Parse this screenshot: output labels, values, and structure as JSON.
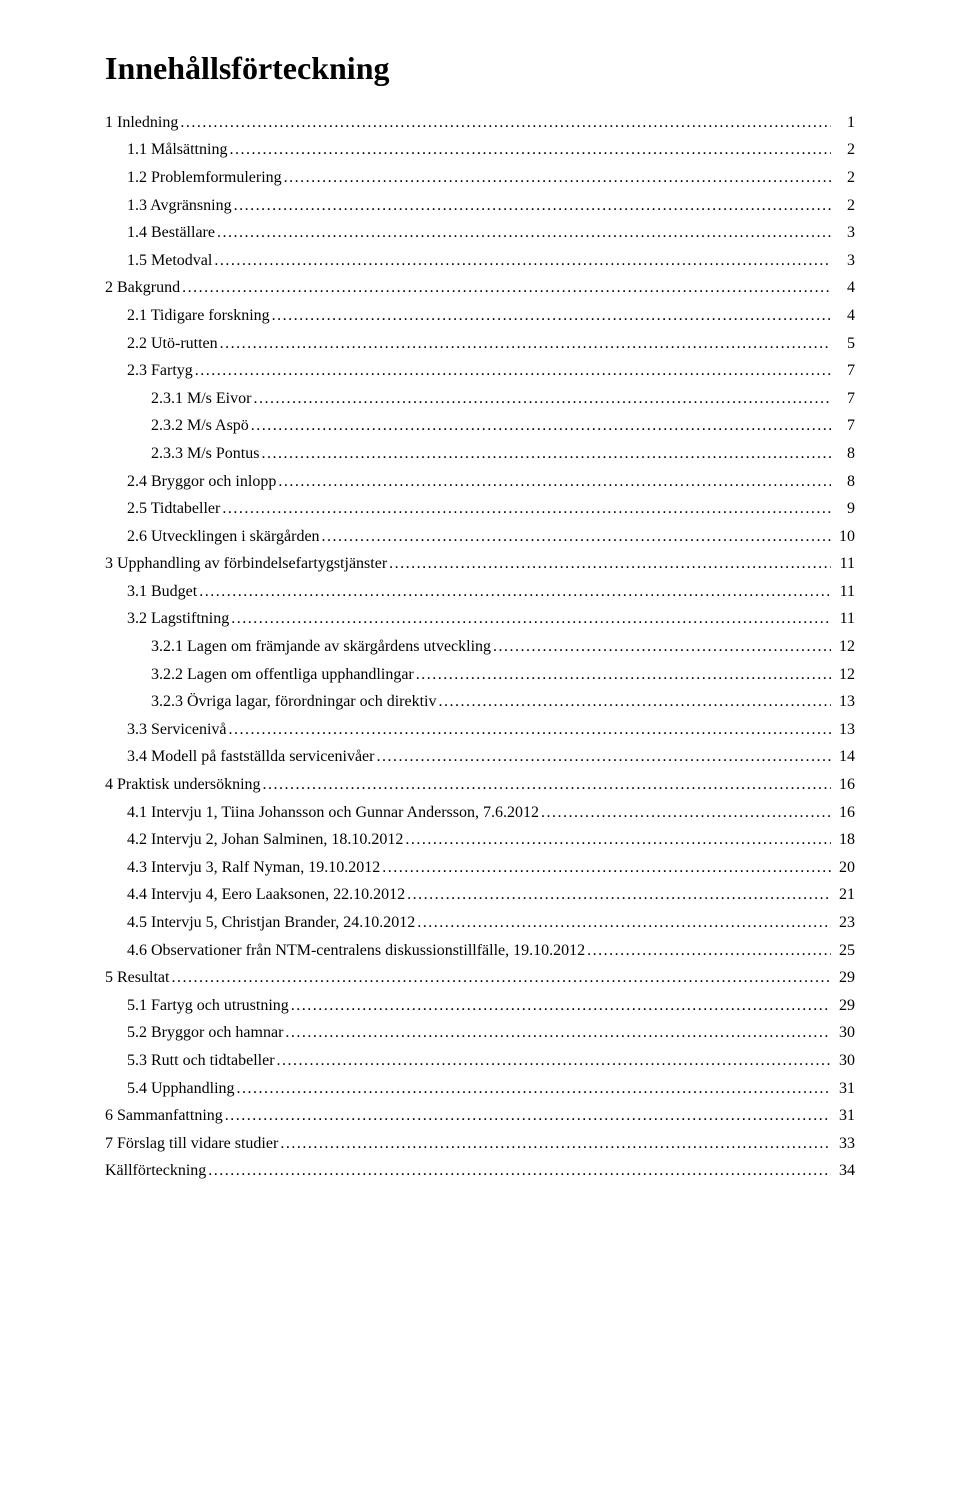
{
  "doc": {
    "title": "Innehållsförteckning",
    "text_color": "#000000",
    "background_color": "#ffffff",
    "title_fontsize": 32,
    "body_fontsize": 16,
    "font_family": "Times New Roman"
  },
  "toc": [
    {
      "level": 0,
      "label": "1 Inledning",
      "page": "1"
    },
    {
      "level": 1,
      "label": "1.1 Målsättning",
      "page": "2"
    },
    {
      "level": 1,
      "label": "1.2 Problemformulering",
      "page": "2"
    },
    {
      "level": 1,
      "label": "1.3 Avgränsning",
      "page": "2"
    },
    {
      "level": 1,
      "label": "1.4 Beställare",
      "page": "3"
    },
    {
      "level": 1,
      "label": "1.5 Metodval",
      "page": "3"
    },
    {
      "level": 0,
      "label": "2 Bakgrund",
      "page": "4"
    },
    {
      "level": 1,
      "label": "2.1 Tidigare forskning",
      "page": "4"
    },
    {
      "level": 1,
      "label": "2.2 Utö-rutten",
      "page": "5"
    },
    {
      "level": 1,
      "label": "2.3 Fartyg",
      "page": "7"
    },
    {
      "level": 2,
      "label": "2.3.1 M/s Eivor",
      "page": "7"
    },
    {
      "level": 2,
      "label": "2.3.2 M/s Aspö",
      "page": "7"
    },
    {
      "level": 2,
      "label": "2.3.3 M/s Pontus",
      "page": "8"
    },
    {
      "level": 1,
      "label": "2.4 Bryggor och inlopp",
      "page": "8"
    },
    {
      "level": 1,
      "label": "2.5 Tidtabeller",
      "page": "9"
    },
    {
      "level": 1,
      "label": "2.6 Utvecklingen i skärgården",
      "page": "10"
    },
    {
      "level": 0,
      "label": "3 Upphandling av förbindelsefartygstjänster",
      "page": "11"
    },
    {
      "level": 1,
      "label": "3.1 Budget",
      "page": "11"
    },
    {
      "level": 1,
      "label": "3.2 Lagstiftning",
      "page": "11"
    },
    {
      "level": 2,
      "label": "3.2.1 Lagen om främjande av skärgårdens utveckling",
      "page": "12"
    },
    {
      "level": 2,
      "label": "3.2.2 Lagen om offentliga upphandlingar",
      "page": "12"
    },
    {
      "level": 2,
      "label": "3.2.3 Övriga lagar, förordningar och direktiv",
      "page": "13"
    },
    {
      "level": 1,
      "label": "3.3 Servicenivå",
      "page": "13"
    },
    {
      "level": 1,
      "label": "3.4 Modell på fastställda servicenivåer",
      "page": "14"
    },
    {
      "level": 0,
      "label": "4 Praktisk undersökning",
      "page": "16"
    },
    {
      "level": 1,
      "label": "4.1 Intervju 1, Tiina Johansson och Gunnar Andersson, 7.6.2012",
      "page": "16"
    },
    {
      "level": 1,
      "label": "4.2 Intervju 2, Johan Salminen, 18.10.2012",
      "page": "18"
    },
    {
      "level": 1,
      "label": "4.3 Intervju 3, Ralf Nyman, 19.10.2012",
      "page": "20"
    },
    {
      "level": 1,
      "label": "4.4 Intervju 4, Eero Laaksonen, 22.10.2012",
      "page": "21"
    },
    {
      "level": 1,
      "label": "4.5 Intervju 5, Christjan Brander, 24.10.2012",
      "page": "23"
    },
    {
      "level": 1,
      "label": "4.6 Observationer från NTM-centralens diskussionstillfälle, 19.10.2012",
      "page": "25"
    },
    {
      "level": 0,
      "label": "5 Resultat",
      "page": "29"
    },
    {
      "level": 1,
      "label": "5.1 Fartyg och utrustning",
      "page": "29"
    },
    {
      "level": 1,
      "label": "5.2 Bryggor och hamnar",
      "page": "30"
    },
    {
      "level": 1,
      "label": "5.3 Rutt och tidtabeller",
      "page": "30"
    },
    {
      "level": 1,
      "label": "5.4 Upphandling",
      "page": "31"
    },
    {
      "level": 0,
      "label": "6 Sammanfattning",
      "page": "31"
    },
    {
      "level": 0,
      "label": "7 Förslag till vidare studier",
      "page": "33"
    },
    {
      "level": 0,
      "label": "Källförteckning",
      "page": "34"
    }
  ]
}
